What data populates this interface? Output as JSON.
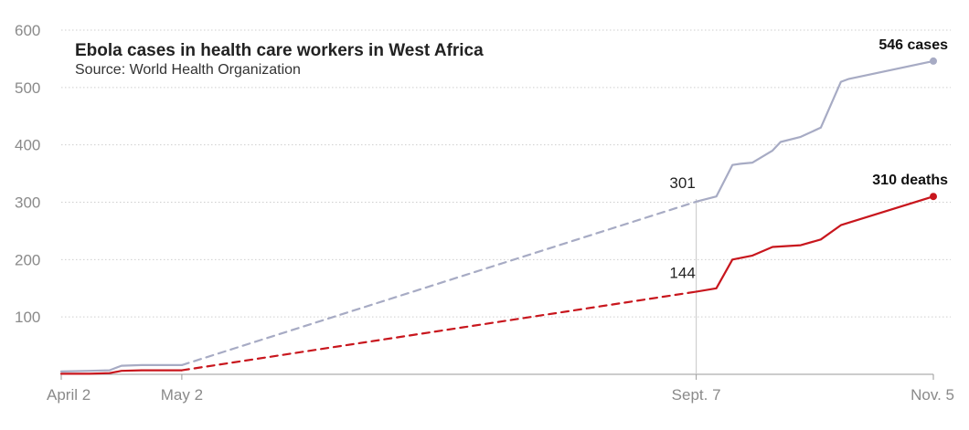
{
  "chart_data": {
    "type": "line",
    "title": "Ebola cases in health care workers in West Africa",
    "subtitle": "Source: World Health Organization",
    "x_axis": {
      "type": "date",
      "range": [
        "2014-04-02",
        "2014-11-05"
      ],
      "ticks": [
        {
          "date": "2014-04-02",
          "label": "April 2"
        },
        {
          "date": "2014-05-02",
          "label": "May 2"
        },
        {
          "date": "2014-09-07",
          "label": "Sept. 7"
        },
        {
          "date": "2014-11-05",
          "label": "Nov. 5"
        }
      ]
    },
    "y_axis": {
      "ylim": [
        0,
        600
      ],
      "ticks": [
        100,
        200,
        300,
        400,
        500,
        600
      ]
    },
    "grid": "horizontal dotted",
    "gap": {
      "from": "2014-05-02",
      "to": "2014-09-07",
      "style": "dashed"
    },
    "marker_line": {
      "date": "2014-09-07"
    },
    "series": [
      {
        "id": "cases",
        "color": "#a7abc4",
        "points": [
          {
            "x": "2014-04-02",
            "y": 5
          },
          {
            "x": "2014-04-09",
            "y": 6
          },
          {
            "x": "2014-04-14",
            "y": 7
          },
          {
            "x": "2014-04-17",
            "y": 15
          },
          {
            "x": "2014-04-22",
            "y": 16
          },
          {
            "x": "2014-05-02",
            "y": 16
          },
          {
            "x": "2014-09-07",
            "y": 301
          },
          {
            "x": "2014-09-12",
            "y": 310
          },
          {
            "x": "2014-09-16",
            "y": 365
          },
          {
            "x": "2014-09-18",
            "y": 367
          },
          {
            "x": "2014-09-21",
            "y": 369
          },
          {
            "x": "2014-09-26",
            "y": 390
          },
          {
            "x": "2014-09-28",
            "y": 405
          },
          {
            "x": "2014-10-03",
            "y": 414
          },
          {
            "x": "2014-10-08",
            "y": 430
          },
          {
            "x": "2014-10-13",
            "y": 510
          },
          {
            "x": "2014-10-15",
            "y": 515
          },
          {
            "x": "2014-11-05",
            "y": 546
          }
        ],
        "end_label": "546 cases",
        "mid_label": "301"
      },
      {
        "id": "deaths",
        "color": "#c8161d",
        "points": [
          {
            "x": "2014-04-02",
            "y": 1
          },
          {
            "x": "2014-04-09",
            "y": 1
          },
          {
            "x": "2014-04-14",
            "y": 2
          },
          {
            "x": "2014-04-17",
            "y": 6
          },
          {
            "x": "2014-04-22",
            "y": 7
          },
          {
            "x": "2014-05-02",
            "y": 7
          },
          {
            "x": "2014-09-07",
            "y": 144
          },
          {
            "x": "2014-09-12",
            "y": 150
          },
          {
            "x": "2014-09-16",
            "y": 200
          },
          {
            "x": "2014-09-21",
            "y": 207
          },
          {
            "x": "2014-09-26",
            "y": 222
          },
          {
            "x": "2014-10-03",
            "y": 225
          },
          {
            "x": "2014-10-08",
            "y": 235
          },
          {
            "x": "2014-10-13",
            "y": 260
          },
          {
            "x": "2014-11-05",
            "y": 310
          }
        ],
        "end_label": "310 deaths",
        "mid_label": "144"
      }
    ]
  }
}
